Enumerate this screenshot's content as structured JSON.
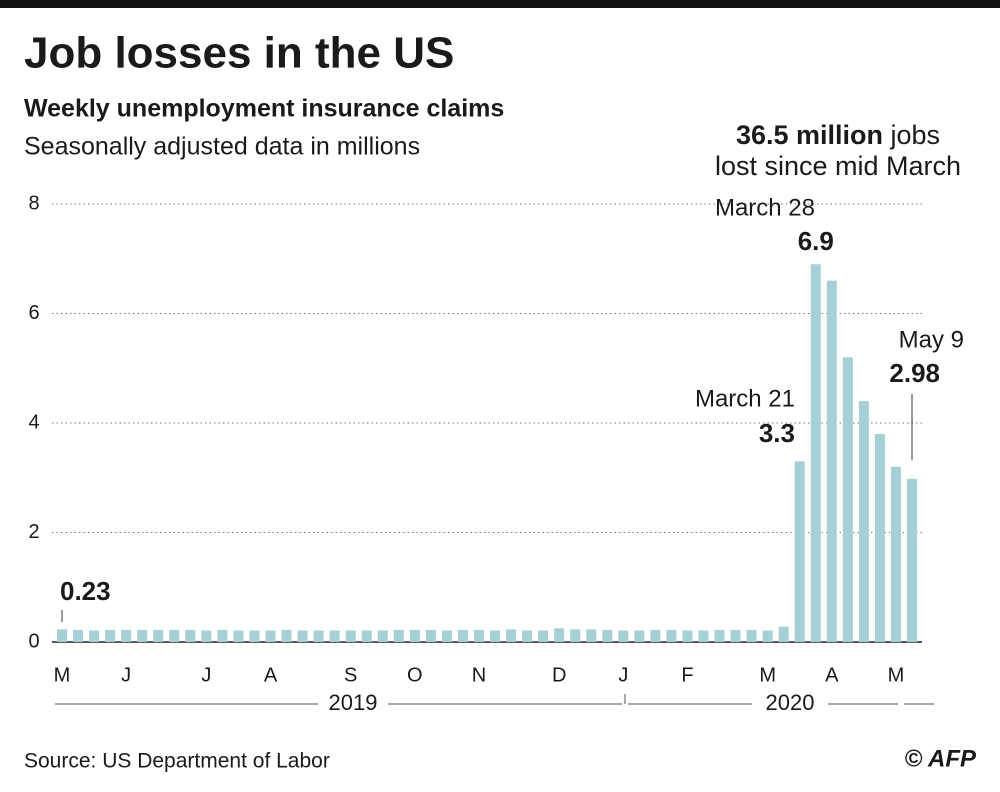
{
  "chart_data": {
    "type": "bar",
    "title": "Job losses in the US",
    "subtitle": "Weekly unemployment insurance claims",
    "unit_note": "Seasonally adjusted data in millions",
    "callout": {
      "highlight": "36.5 million",
      "rest": "jobs",
      "line2": "lost since mid March"
    },
    "categories": [
      "M",
      null,
      null,
      null,
      "J",
      null,
      null,
      null,
      null,
      "J",
      null,
      null,
      null,
      "A",
      null,
      null,
      null,
      null,
      "S",
      null,
      null,
      null,
      "O",
      null,
      null,
      null,
      "N",
      null,
      null,
      null,
      null,
      "D",
      null,
      null,
      null,
      "J",
      null,
      null,
      null,
      "F",
      null,
      null,
      null,
      null,
      "M",
      null,
      null,
      null,
      "A",
      null,
      null,
      null,
      "M",
      null
    ],
    "values": [
      0.23,
      0.22,
      0.21,
      0.22,
      0.22,
      0.22,
      0.22,
      0.22,
      0.22,
      0.21,
      0.22,
      0.21,
      0.21,
      0.21,
      0.22,
      0.21,
      0.21,
      0.21,
      0.21,
      0.21,
      0.21,
      0.22,
      0.22,
      0.22,
      0.21,
      0.22,
      0.22,
      0.21,
      0.23,
      0.21,
      0.21,
      0.25,
      0.23,
      0.23,
      0.22,
      0.21,
      0.21,
      0.22,
      0.22,
      0.21,
      0.21,
      0.22,
      0.22,
      0.22,
      0.21,
      0.28,
      3.3,
      6.9,
      6.6,
      5.2,
      4.4,
      3.8,
      3.2,
      2.98
    ],
    "annotations": [
      "March 21",
      "March 28",
      "May 9"
    ],
    "x_groups": [
      "2019",
      "2020"
    ],
    "color": "#a5d0d6",
    "callout_color": "#5eb3be",
    "ylim": [
      0,
      8
    ],
    "yticks": [
      0,
      2,
      4,
      6,
      8
    ],
    "grid": true,
    "source": "Source: US Department of Labor",
    "credit": "© AFP"
  }
}
